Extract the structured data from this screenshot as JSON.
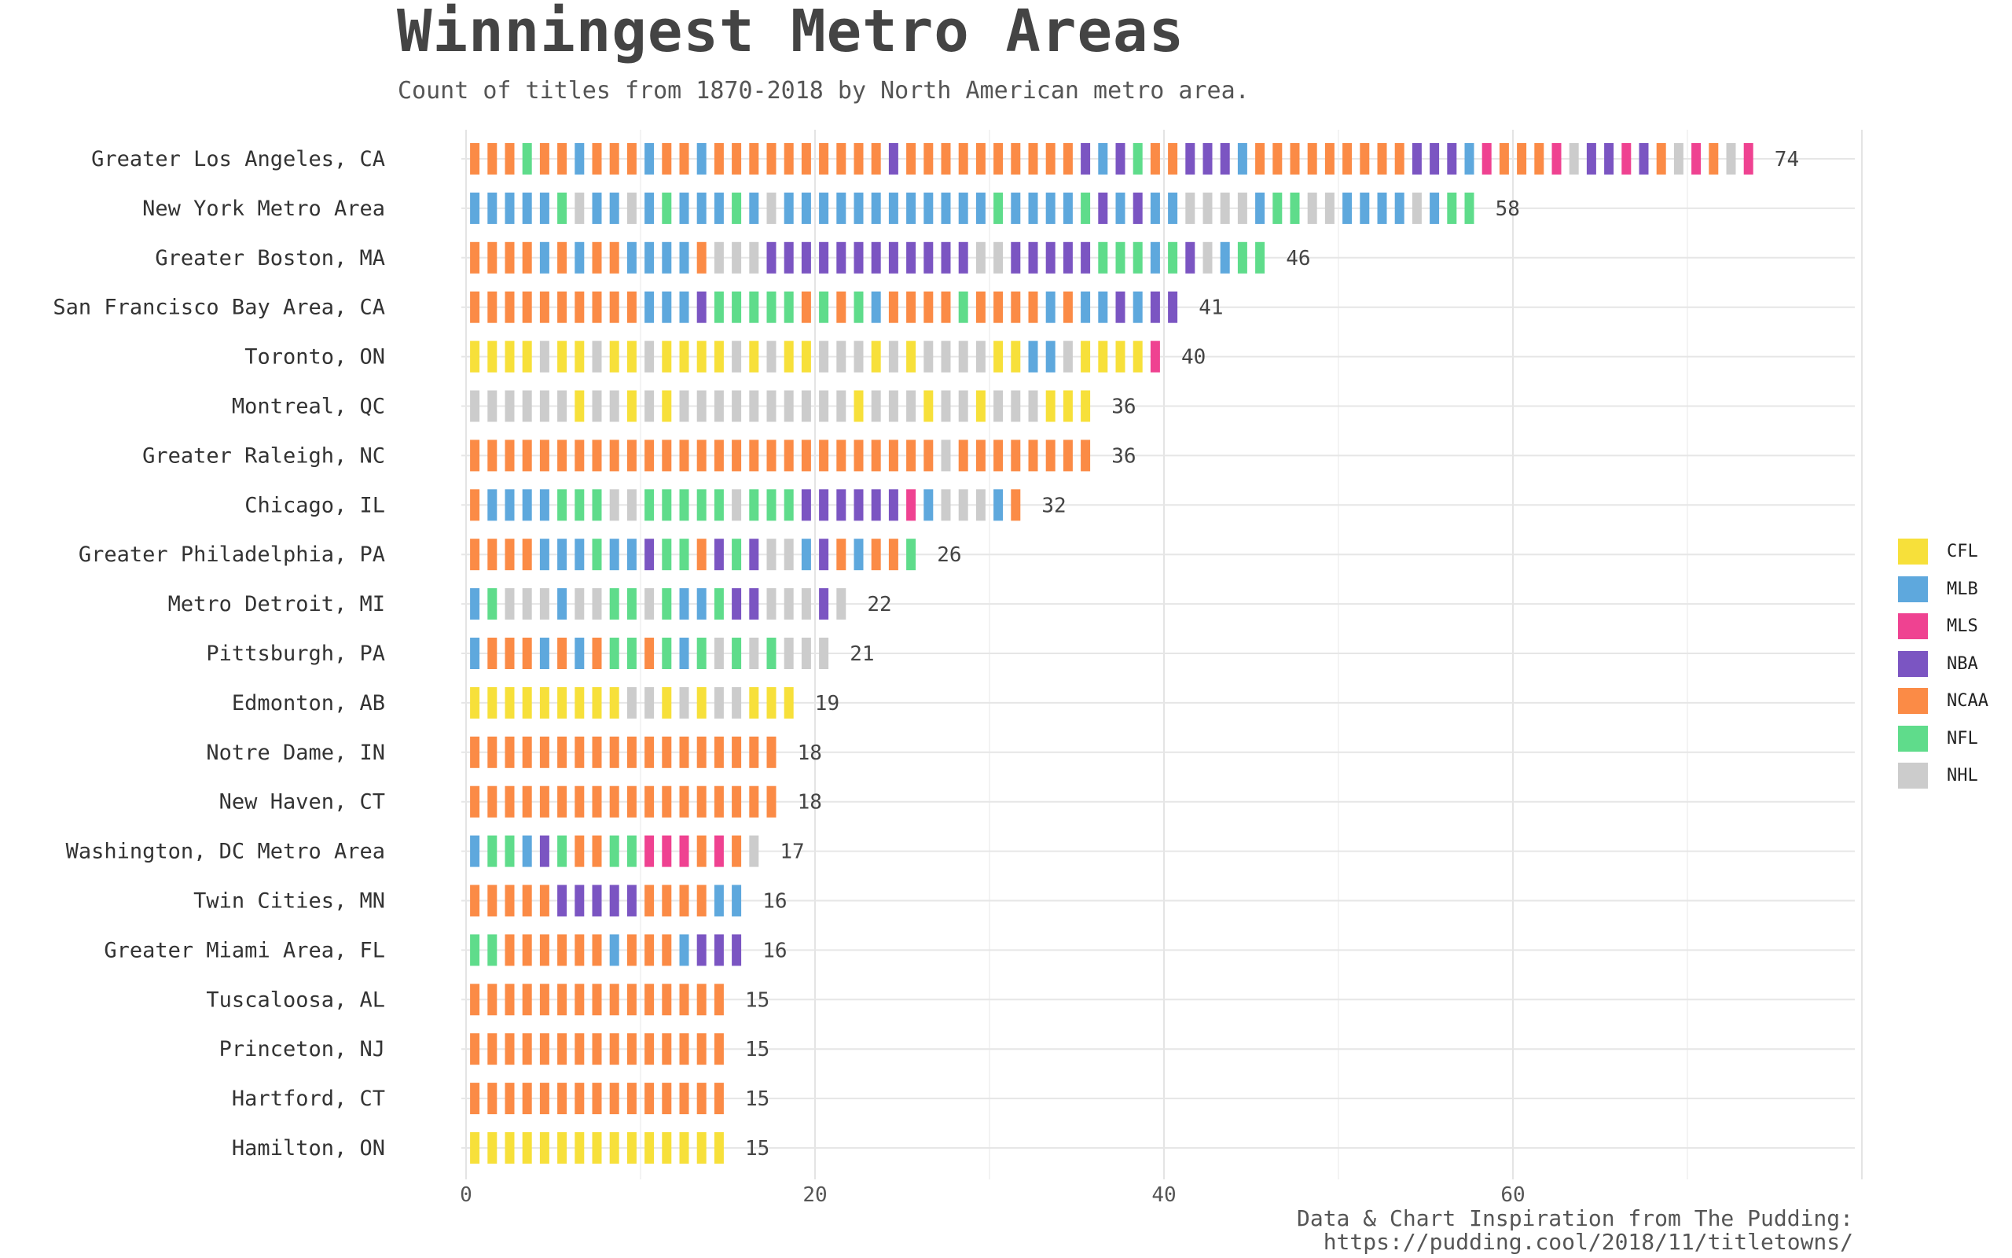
{
  "title": "Winningest Metro Areas",
  "subtitle": "Count of titles from 1870-2018 by North American metro area.",
  "caption": {
    "line1": "Data & Chart Inspiration from The Pudding:",
    "line2": "https://pudding.cool/2018/11/titletowns/"
  },
  "legend": [
    {
      "name": "CFL",
      "color": "#f7e03a"
    },
    {
      "name": "MLB",
      "color": "#5ea8dd"
    },
    {
      "name": "MLS",
      "color": "#ef4291"
    },
    {
      "name": "NBA",
      "color": "#7b55c2"
    },
    {
      "name": "NCAA",
      "color": "#fb8b46"
    },
    {
      "name": "NFL",
      "color": "#5fdc8b"
    },
    {
      "name": "NHL",
      "color": "#cccccc"
    }
  ],
  "chart_data": {
    "type": "bar",
    "stacked_units": true,
    "xlim": [
      0,
      80
    ],
    "x_ticks": [
      0,
      20,
      40,
      60
    ],
    "grid": true,
    "legend_position": "right",
    "rows": [
      {
        "label": "Greater Los Angeles, CA",
        "total": 74,
        "sequence": [
          "NCAA",
          "NCAA",
          "NCAA",
          "NFL",
          "NCAA",
          "NCAA",
          "MLB",
          "NCAA",
          "NCAA",
          "NCAA",
          "MLB",
          "NCAA",
          "NCAA",
          "MLB",
          "NCAA",
          "NCAA",
          "NCAA",
          "NCAA",
          "NCAA",
          "NCAA",
          "NCAA",
          "NCAA",
          "NCAA",
          "NCAA",
          "NBA",
          "NCAA",
          "NCAA",
          "NCAA",
          "NCAA",
          "NCAA",
          "NCAA",
          "NCAA",
          "NCAA",
          "NCAA",
          "NCAA",
          "NBA",
          "MLB",
          "NBA",
          "NFL",
          "NCAA",
          "NCAA",
          "NBA",
          "NBA",
          "NBA",
          "MLB",
          "NCAA",
          "NCAA",
          "NCAA",
          "NCAA",
          "NCAA",
          "NCAA",
          "NCAA",
          "NCAA",
          "NCAA",
          "NBA",
          "NBA",
          "NBA",
          "MLB",
          "MLS",
          "NCAA",
          "NCAA",
          "NCAA",
          "MLS",
          "NHL",
          "NBA",
          "NBA",
          "MLS",
          "NBA",
          "NCAA",
          "NHL",
          "MLS",
          "NCAA",
          "NHL",
          "MLS"
        ]
      },
      {
        "label": "New York Metro Area",
        "total": 58,
        "sequence": [
          "MLB",
          "MLB",
          "MLB",
          "MLB",
          "MLB",
          "NFL",
          "NHL",
          "MLB",
          "MLB",
          "NHL",
          "MLB",
          "NFL",
          "MLB",
          "MLB",
          "MLB",
          "NFL",
          "MLB",
          "NHL",
          "MLB",
          "MLB",
          "MLB",
          "MLB",
          "MLB",
          "MLB",
          "MLB",
          "MLB",
          "MLB",
          "MLB",
          "MLB",
          "MLB",
          "NFL",
          "MLB",
          "MLB",
          "MLB",
          "MLB",
          "NFL",
          "NBA",
          "MLB",
          "NBA",
          "MLB",
          "MLB",
          "NHL",
          "NHL",
          "NHL",
          "NHL",
          "MLB",
          "NFL",
          "NFL",
          "NHL",
          "NHL",
          "MLB",
          "MLB",
          "MLB",
          "MLB",
          "NHL",
          "MLB",
          "NFL",
          "NFL"
        ]
      },
      {
        "label": "Greater Boston, MA",
        "total": 46,
        "sequence": [
          "NCAA",
          "NCAA",
          "NCAA",
          "NCAA",
          "MLB",
          "NCAA",
          "MLB",
          "NCAA",
          "NCAA",
          "MLB",
          "MLB",
          "MLB",
          "MLB",
          "NCAA",
          "NHL",
          "NHL",
          "NHL",
          "NBA",
          "NBA",
          "NBA",
          "NBA",
          "NBA",
          "NBA",
          "NBA",
          "NBA",
          "NBA",
          "NBA",
          "NBA",
          "NBA",
          "NHL",
          "NHL",
          "NBA",
          "NBA",
          "NBA",
          "NBA",
          "NBA",
          "NFL",
          "NFL",
          "NFL",
          "MLB",
          "NFL",
          "NBA",
          "NHL",
          "MLB",
          "NFL",
          "NFL"
        ]
      },
      {
        "label": "San Francisco Bay Area, CA",
        "total": 41,
        "sequence": [
          "NCAA",
          "NCAA",
          "NCAA",
          "NCAA",
          "NCAA",
          "NCAA",
          "NCAA",
          "NCAA",
          "NCAA",
          "NCAA",
          "MLB",
          "MLB",
          "MLB",
          "NBA",
          "NFL",
          "NFL",
          "NFL",
          "NFL",
          "NFL",
          "NCAA",
          "NFL",
          "NCAA",
          "NFL",
          "MLB",
          "NCAA",
          "NCAA",
          "NCAA",
          "NCAA",
          "NFL",
          "NCAA",
          "NCAA",
          "NCAA",
          "NCAA",
          "MLB",
          "NCAA",
          "MLB",
          "MLB",
          "NBA",
          "MLB",
          "NBA",
          "NBA"
        ]
      },
      {
        "label": "Toronto, ON",
        "total": 40,
        "sequence": [
          "CFL",
          "CFL",
          "CFL",
          "CFL",
          "NHL",
          "CFL",
          "CFL",
          "NHL",
          "CFL",
          "CFL",
          "NHL",
          "CFL",
          "CFL",
          "CFL",
          "CFL",
          "NHL",
          "CFL",
          "NHL",
          "CFL",
          "CFL",
          "NHL",
          "NHL",
          "NHL",
          "CFL",
          "NHL",
          "CFL",
          "NHL",
          "NHL",
          "NHL",
          "NHL",
          "CFL",
          "CFL",
          "MLB",
          "MLB",
          "NHL",
          "CFL",
          "CFL",
          "CFL",
          "CFL",
          "MLS"
        ]
      },
      {
        "label": "Montreal, QC",
        "total": 36,
        "sequence": [
          "NHL",
          "NHL",
          "NHL",
          "NHL",
          "NHL",
          "NHL",
          "CFL",
          "NHL",
          "NHL",
          "CFL",
          "NHL",
          "CFL",
          "NHL",
          "NHL",
          "NHL",
          "NHL",
          "NHL",
          "NHL",
          "NHL",
          "NHL",
          "NHL",
          "NHL",
          "CFL",
          "NHL",
          "NHL",
          "NHL",
          "CFL",
          "NHL",
          "NHL",
          "CFL",
          "NHL",
          "NHL",
          "NHL",
          "CFL",
          "CFL",
          "CFL"
        ]
      },
      {
        "label": "Greater Raleigh, NC",
        "total": 36,
        "sequence": [
          "NCAA",
          "NCAA",
          "NCAA",
          "NCAA",
          "NCAA",
          "NCAA",
          "NCAA",
          "NCAA",
          "NCAA",
          "NCAA",
          "NCAA",
          "NCAA",
          "NCAA",
          "NCAA",
          "NCAA",
          "NCAA",
          "NCAA",
          "NCAA",
          "NCAA",
          "NCAA",
          "NCAA",
          "NCAA",
          "NCAA",
          "NCAA",
          "NCAA",
          "NCAA",
          "NCAA",
          "NHL",
          "NCAA",
          "NCAA",
          "NCAA",
          "NCAA",
          "NCAA",
          "NCAA",
          "NCAA",
          "NCAA"
        ]
      },
      {
        "label": "Chicago, IL",
        "total": 32,
        "sequence": [
          "NCAA",
          "MLB",
          "MLB",
          "MLB",
          "MLB",
          "NFL",
          "NFL",
          "NFL",
          "NHL",
          "NHL",
          "NFL",
          "NFL",
          "NFL",
          "NFL",
          "NFL",
          "NHL",
          "NFL",
          "NFL",
          "NFL",
          "NBA",
          "NBA",
          "NBA",
          "NBA",
          "NBA",
          "NBA",
          "MLS",
          "MLB",
          "NHL",
          "NHL",
          "NHL",
          "MLB",
          "NCAA"
        ]
      },
      {
        "label": "Greater Philadelphia, PA",
        "total": 26,
        "sequence": [
          "NCAA",
          "NCAA",
          "NCAA",
          "NCAA",
          "MLB",
          "MLB",
          "MLB",
          "NFL",
          "MLB",
          "MLB",
          "NBA",
          "NFL",
          "NFL",
          "NCAA",
          "NBA",
          "NFL",
          "NBA",
          "NHL",
          "NHL",
          "MLB",
          "NBA",
          "NCAA",
          "MLB",
          "NCAA",
          "NCAA",
          "NFL"
        ]
      },
      {
        "label": "Metro Detroit, MI",
        "total": 22,
        "sequence": [
          "MLB",
          "NFL",
          "NHL",
          "NHL",
          "NHL",
          "MLB",
          "NHL",
          "NHL",
          "NFL",
          "NFL",
          "NHL",
          "NFL",
          "MLB",
          "MLB",
          "NFL",
          "NBA",
          "NBA",
          "NHL",
          "NHL",
          "NHL",
          "NBA",
          "NHL"
        ]
      },
      {
        "label": "Pittsburgh, PA",
        "total": 21,
        "sequence": [
          "MLB",
          "NCAA",
          "NCAA",
          "NCAA",
          "MLB",
          "NCAA",
          "MLB",
          "NCAA",
          "NFL",
          "NFL",
          "NCAA",
          "NFL",
          "MLB",
          "NFL",
          "NHL",
          "NFL",
          "NHL",
          "NFL",
          "NHL",
          "NHL",
          "NHL"
        ]
      },
      {
        "label": "Edmonton, AB",
        "total": 19,
        "sequence": [
          "CFL",
          "CFL",
          "CFL",
          "CFL",
          "CFL",
          "CFL",
          "CFL",
          "CFL",
          "CFL",
          "NHL",
          "NHL",
          "CFL",
          "NHL",
          "CFL",
          "NHL",
          "NHL",
          "CFL",
          "CFL",
          "CFL"
        ]
      },
      {
        "label": "Notre Dame, IN",
        "total": 18,
        "sequence": [
          "NCAA",
          "NCAA",
          "NCAA",
          "NCAA",
          "NCAA",
          "NCAA",
          "NCAA",
          "NCAA",
          "NCAA",
          "NCAA",
          "NCAA",
          "NCAA",
          "NCAA",
          "NCAA",
          "NCAA",
          "NCAA",
          "NCAA",
          "NCAA"
        ]
      },
      {
        "label": "New Haven, CT",
        "total": 18,
        "sequence": [
          "NCAA",
          "NCAA",
          "NCAA",
          "NCAA",
          "NCAA",
          "NCAA",
          "NCAA",
          "NCAA",
          "NCAA",
          "NCAA",
          "NCAA",
          "NCAA",
          "NCAA",
          "NCAA",
          "NCAA",
          "NCAA",
          "NCAA",
          "NCAA"
        ]
      },
      {
        "label": "Washington, DC Metro Area",
        "total": 17,
        "sequence": [
          "MLB",
          "NFL",
          "NFL",
          "MLB",
          "NBA",
          "NFL",
          "NCAA",
          "NCAA",
          "NFL",
          "NFL",
          "MLS",
          "MLS",
          "MLS",
          "NCAA",
          "MLS",
          "NCAA",
          "NHL"
        ]
      },
      {
        "label": "Twin Cities, MN",
        "total": 16,
        "sequence": [
          "NCAA",
          "NCAA",
          "NCAA",
          "NCAA",
          "NCAA",
          "NBA",
          "NBA",
          "NBA",
          "NBA",
          "NBA",
          "NCAA",
          "NCAA",
          "NCAA",
          "NCAA",
          "MLB",
          "MLB"
        ]
      },
      {
        "label": "Greater Miami Area, FL",
        "total": 16,
        "sequence": [
          "NFL",
          "NFL",
          "NCAA",
          "NCAA",
          "NCAA",
          "NCAA",
          "NCAA",
          "NCAA",
          "MLB",
          "NCAA",
          "NCAA",
          "NCAA",
          "MLB",
          "NBA",
          "NBA",
          "NBA"
        ]
      },
      {
        "label": "Tuscaloosa, AL",
        "total": 15,
        "sequence": [
          "NCAA",
          "NCAA",
          "NCAA",
          "NCAA",
          "NCAA",
          "NCAA",
          "NCAA",
          "NCAA",
          "NCAA",
          "NCAA",
          "NCAA",
          "NCAA",
          "NCAA",
          "NCAA",
          "NCAA"
        ]
      },
      {
        "label": "Princeton, NJ",
        "total": 15,
        "sequence": [
          "NCAA",
          "NCAA",
          "NCAA",
          "NCAA",
          "NCAA",
          "NCAA",
          "NCAA",
          "NCAA",
          "NCAA",
          "NCAA",
          "NCAA",
          "NCAA",
          "NCAA",
          "NCAA",
          "NCAA"
        ]
      },
      {
        "label": "Hartford, CT",
        "total": 15,
        "sequence": [
          "NCAA",
          "NCAA",
          "NCAA",
          "NCAA",
          "NCAA",
          "NCAA",
          "NCAA",
          "NCAA",
          "NCAA",
          "NCAA",
          "NCAA",
          "NCAA",
          "NCAA",
          "NCAA",
          "NCAA"
        ]
      },
      {
        "label": "Hamilton, ON",
        "total": 15,
        "sequence": [
          "CFL",
          "CFL",
          "CFL",
          "CFL",
          "CFL",
          "CFL",
          "CFL",
          "CFL",
          "CFL",
          "CFL",
          "CFL",
          "CFL",
          "CFL",
          "CFL",
          "CFL"
        ]
      }
    ]
  }
}
